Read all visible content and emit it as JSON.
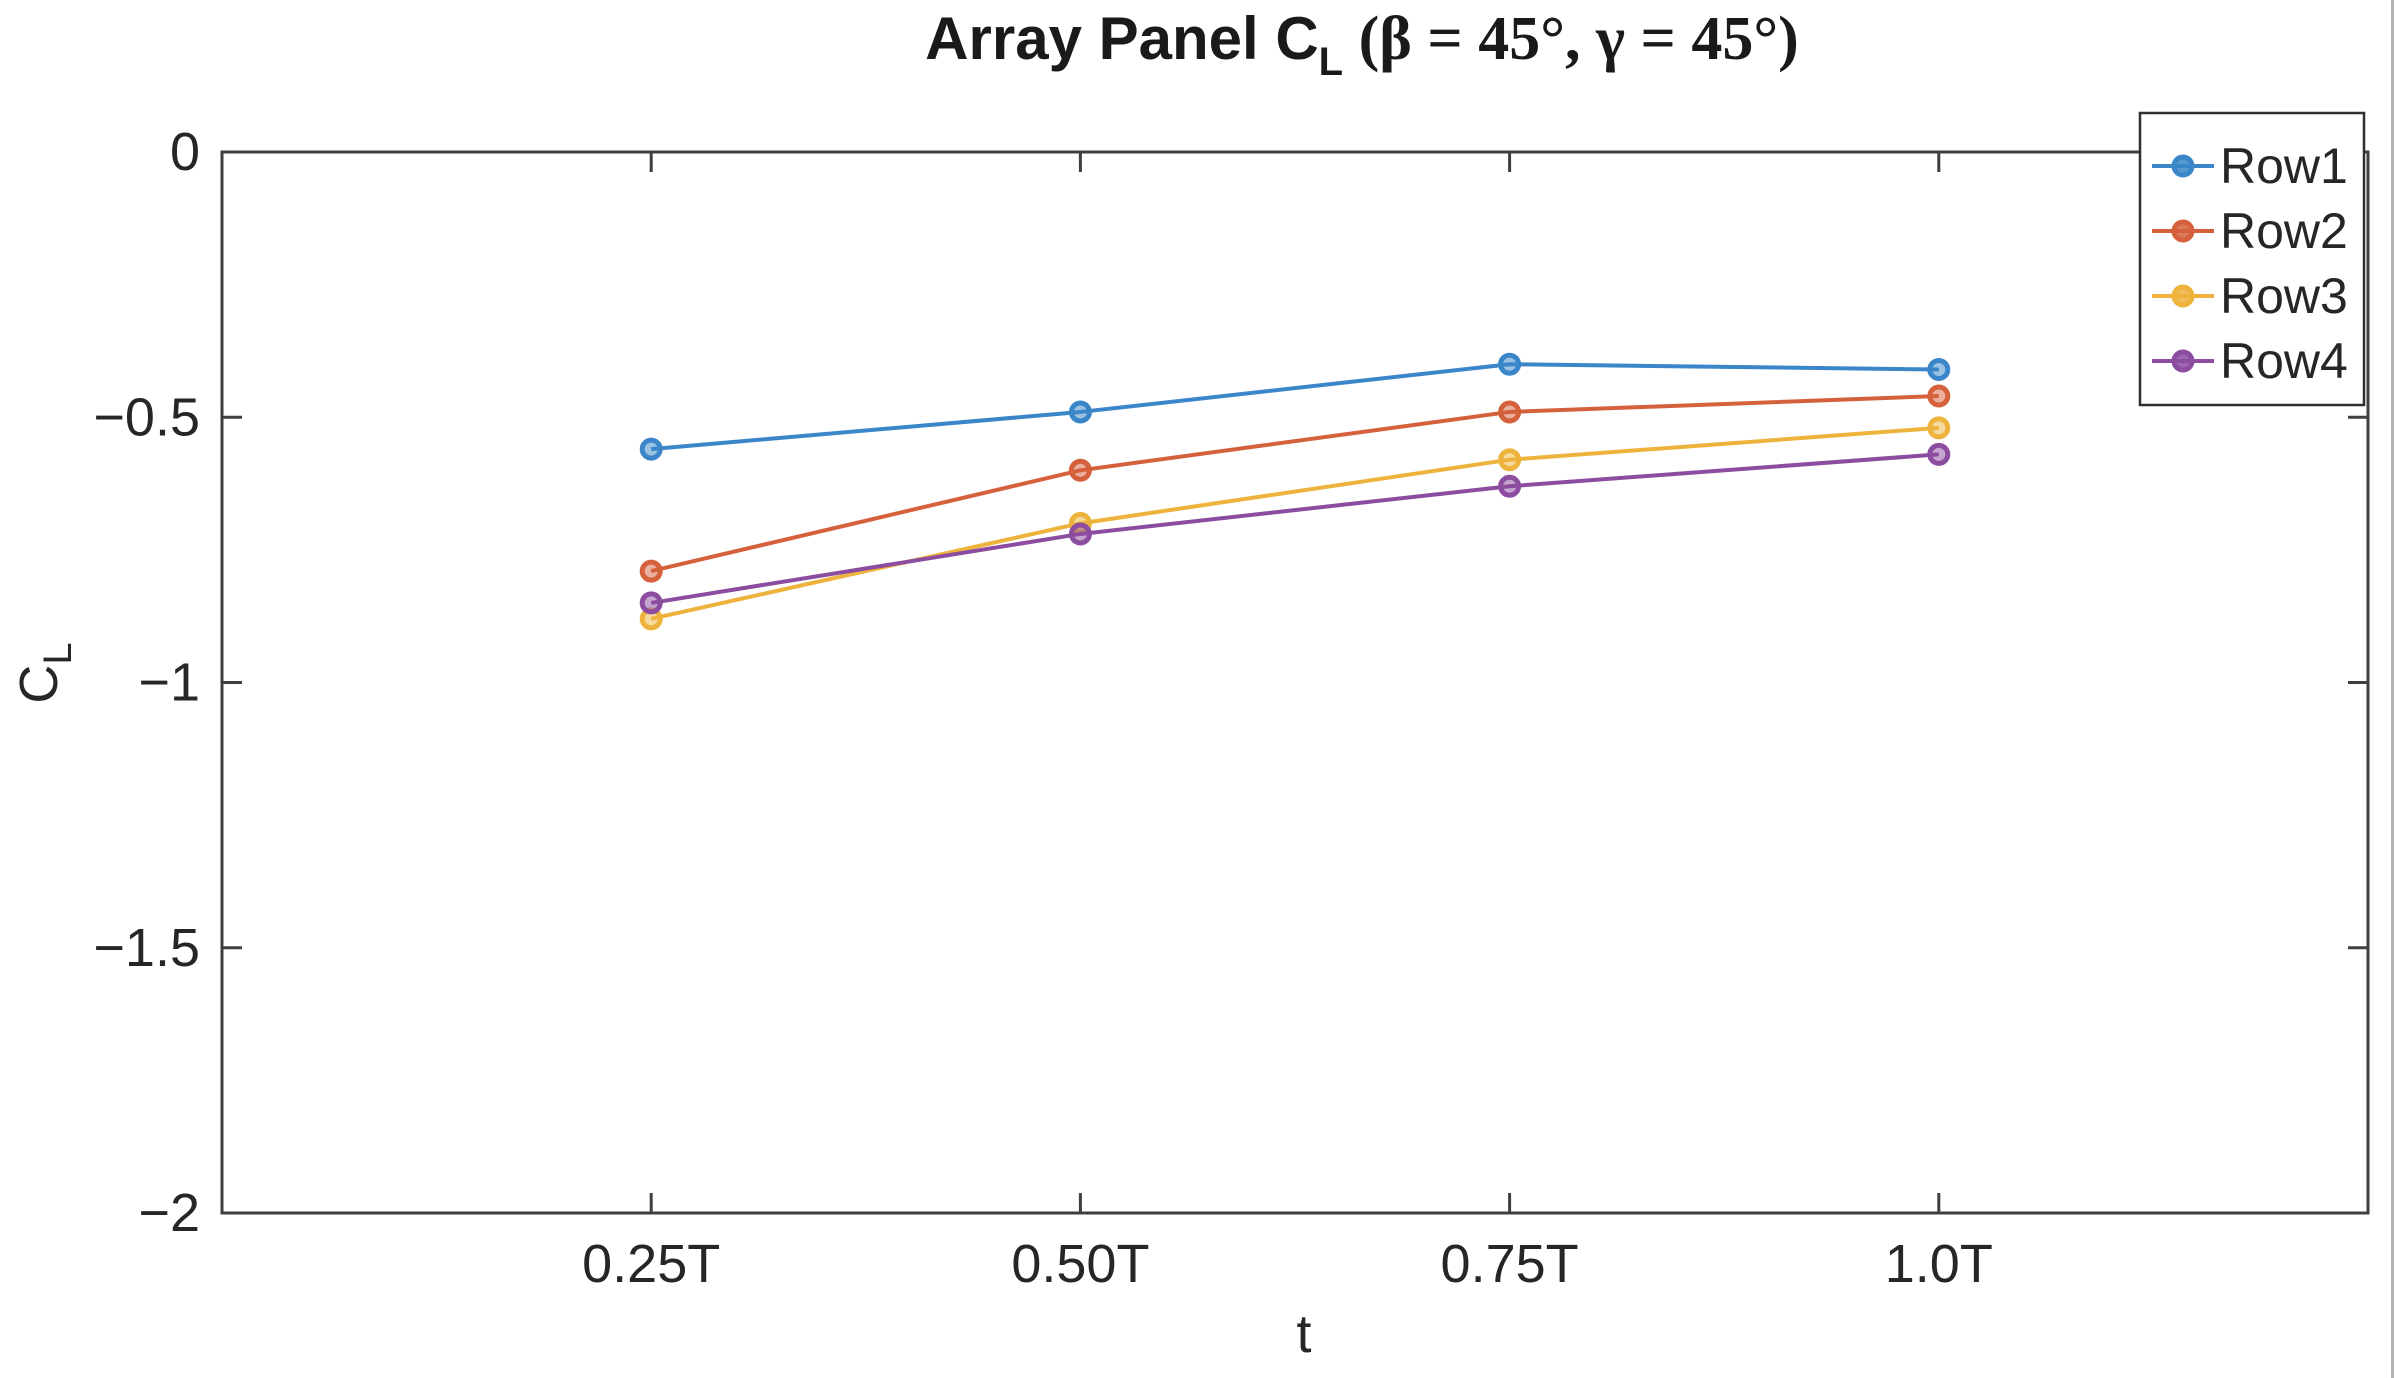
{
  "figure": {
    "background": "#ffffff",
    "right_edge_color": "#b5b5b5"
  },
  "chart_data": {
    "type": "line",
    "title": {
      "plain": "Array Panel C_L (β = 45°, γ = 45°)",
      "main": "Array Panel C",
      "sub": "L",
      "math": " (β = 45°, γ = 45°)"
    },
    "xlabel": "t",
    "ylabel": {
      "main": "C",
      "sub": "L"
    },
    "xlim": [
      0,
      1.25
    ],
    "ylim": [
      -2,
      0
    ],
    "grid": false,
    "box": true,
    "tick_direction": "in",
    "x": [
      0.25,
      0.5,
      0.75,
      1.0
    ],
    "xticks": [
      {
        "value": 0.25,
        "label": "0.25T"
      },
      {
        "value": 0.5,
        "label": "0.50T"
      },
      {
        "value": 0.75,
        "label": "0.75T"
      },
      {
        "value": 1.0,
        "label": "1.0T"
      }
    ],
    "yticks": [
      {
        "value": 0,
        "label": "0"
      },
      {
        "value": -0.5,
        "label": "−0.5"
      },
      {
        "value": -1,
        "label": "−1"
      },
      {
        "value": -1.5,
        "label": "−1.5"
      },
      {
        "value": -2,
        "label": "−2"
      }
    ],
    "series": [
      {
        "name": "Row1",
        "color": "#3A86C8",
        "marker": "circle",
        "values": [
          -0.56,
          -0.49,
          -0.4,
          -0.41
        ]
      },
      {
        "name": "Row2",
        "color": "#D5603C",
        "marker": "circle",
        "values": [
          -0.79,
          -0.6,
          -0.49,
          -0.46
        ]
      },
      {
        "name": "Row3",
        "color": "#EDB33C",
        "marker": "circle",
        "values": [
          -0.88,
          -0.7,
          -0.58,
          -0.52
        ]
      },
      {
        "name": "Row4",
        "color": "#8C4CA0",
        "marker": "circle",
        "values": [
          -0.85,
          -0.72,
          -0.63,
          -0.57
        ]
      }
    ],
    "legend": {
      "position": "top-right",
      "labels": [
        "Row1",
        "Row2",
        "Row3",
        "Row4"
      ]
    },
    "axis_color": "#3F3F3F",
    "text_color": "#262626"
  }
}
